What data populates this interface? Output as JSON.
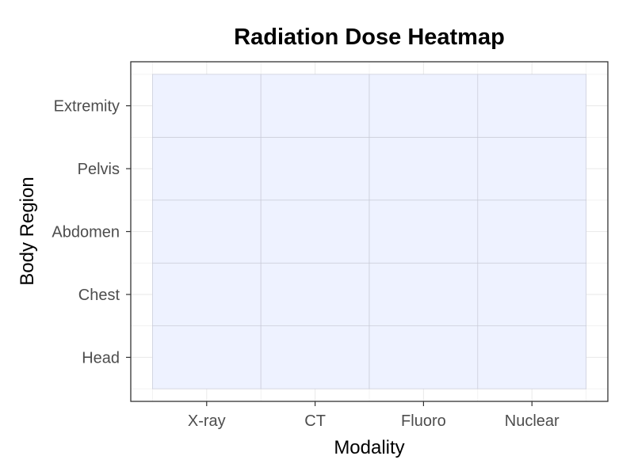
{
  "chart_data": {
    "type": "heatmap",
    "title": "Radiation Dose Heatmap",
    "xlabel": "Modality",
    "ylabel": "Body Region",
    "x_categories": [
      "X-ray",
      "CT",
      "Fluoro",
      "Nuclear"
    ],
    "y_categories": [
      "Head",
      "Chest",
      "Abdomen",
      "Pelvis",
      "Extremity"
    ],
    "cell_color": "#eef2ff",
    "cell_border_color": "#c8cad6",
    "grid": true,
    "grid_color": "#ebebeb",
    "panel_border_color": "#333333",
    "legend": "none"
  }
}
